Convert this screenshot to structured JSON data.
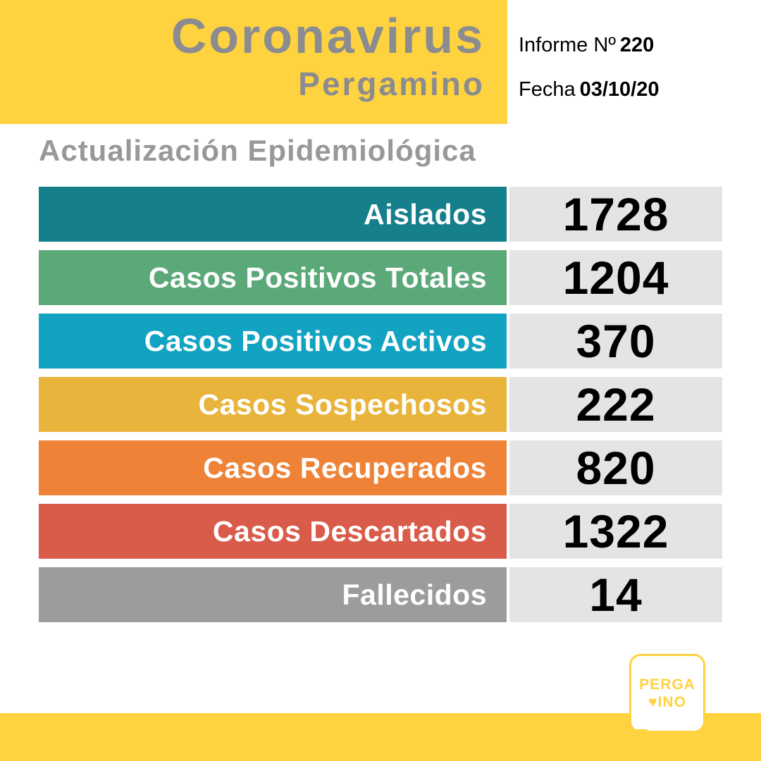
{
  "header": {
    "title": "Coronavirus",
    "subtitle": "Pergamino",
    "report_label": "Informe Nº",
    "report_number": "220",
    "date_label": "Fecha",
    "date_value": "03/10/20"
  },
  "section": {
    "title": "Actualización Epidemiológica"
  },
  "table": {
    "value_bg": "#E4E4E4",
    "rows": [
      {
        "label": "Aislados",
        "value": "1728",
        "color": "#157F8B"
      },
      {
        "label": "Casos Positivos Totales",
        "value": "1204",
        "color": "#5BA878"
      },
      {
        "label": "Casos Positivos Activos",
        "value": "370",
        "color": "#12A3C2"
      },
      {
        "label": "Casos Sospechosos",
        "value": "222",
        "color": "#E8B43C"
      },
      {
        "label": "Casos Recuperados",
        "value": "820",
        "color": "#EE8338"
      },
      {
        "label": "Casos Descartados",
        "value": "1322",
        "color": "#D95B4A"
      },
      {
        "label": "Fallecidos",
        "value": "14",
        "color": "#9C9C9E"
      }
    ]
  },
  "logo": {
    "line1": "PERGA",
    "heart": "♥",
    "line2": "INO"
  },
  "colors": {
    "brand_yellow": "#FFD23F",
    "title_gray": "#8B8C90",
    "section_gray": "#98989B"
  },
  "chart_data": {
    "type": "table",
    "title": "Actualización Epidemiológica",
    "subtitle": "Coronavirus Pergamino — Informe Nº 220 — Fecha 03/10/20",
    "categories": [
      "Aislados",
      "Casos Positivos Totales",
      "Casos Positivos Activos",
      "Casos Sospechosos",
      "Casos Recuperados",
      "Casos Descartados",
      "Fallecidos"
    ],
    "values": [
      1728,
      1204,
      370,
      222,
      820,
      1322,
      14
    ]
  }
}
